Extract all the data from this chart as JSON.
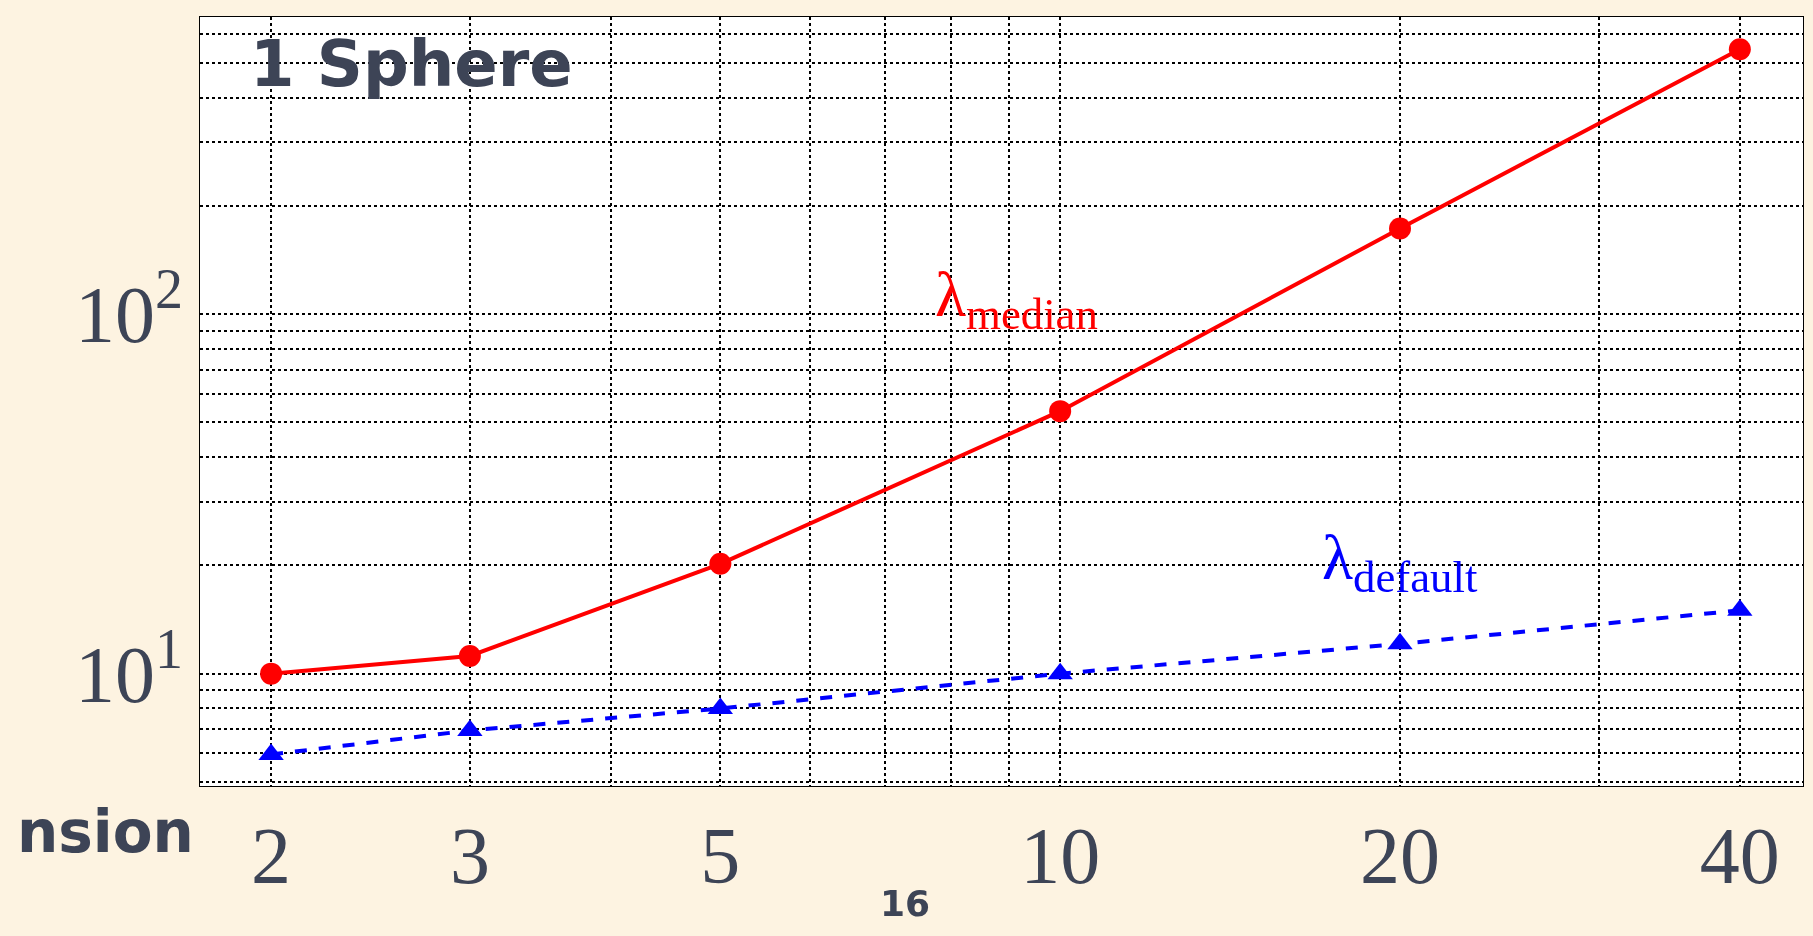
{
  "chart_data": {
    "type": "line",
    "title": "1 Sphere",
    "xlabel": "nsion",
    "annotations": [
      "16"
    ],
    "x": [
      2,
      3,
      5,
      10,
      20,
      40
    ],
    "series": [
      {
        "name": "λ$_{median}$",
        "color": "#ff0000",
        "values": [
          10,
          11.2,
          20.2,
          53.7,
          173,
          545
        ],
        "marker": "circle",
        "line_style": "solid"
      },
      {
        "name": "λ$_{default}$",
        "color": "#0000ff",
        "values": [
          5.96,
          6.95,
          8.0,
          10,
          12.1,
          15.0
        ],
        "marker": "triangle",
        "line_style": "dashed"
      }
    ],
    "log": "xy",
    "grid": true,
    "legend": false,
    "xlim": [
      1.73,
      45.5
    ],
    "ylim": [
      4.87,
      670
    ],
    "xticks": [
      2,
      3,
      {
        "value": 4,
        "label": null
      },
      5,
      {
        "value": 6,
        "label": null
      },
      {
        "value": 7,
        "label": null
      },
      {
        "value": 8,
        "label": null
      },
      {
        "value": 9,
        "label": null
      },
      10,
      20,
      {
        "value": 30,
        "label": null
      },
      40
    ],
    "yticks": [
      {
        "value": 5,
        "label": null
      },
      {
        "value": 6,
        "label": null
      },
      {
        "value": 7,
        "label": null
      },
      {
        "value": 8,
        "label": null
      },
      {
        "value": 9,
        "label": null
      },
      {
        "value": 10,
        "label": "10$^{1}$"
      },
      {
        "value": 20,
        "label": null
      },
      {
        "value": 30,
        "label": null
      },
      {
        "value": 40,
        "label": null
      },
      {
        "value": 50,
        "label": null
      },
      {
        "value": 60,
        "label": null
      },
      {
        "value": 70,
        "label": null
      },
      {
        "value": 80,
        "label": null
      },
      {
        "value": 90,
        "label": null
      },
      {
        "value": 100,
        "label": "10$^{2}$"
      },
      {
        "value": 200,
        "label": null
      },
      {
        "value": 300,
        "label": null
      },
      {
        "value": 400,
        "label": null
      },
      {
        "value": 500,
        "label": null
      },
      {
        "value": 600,
        "label": null
      }
    ],
    "tick_labels": "xy"
  }
}
